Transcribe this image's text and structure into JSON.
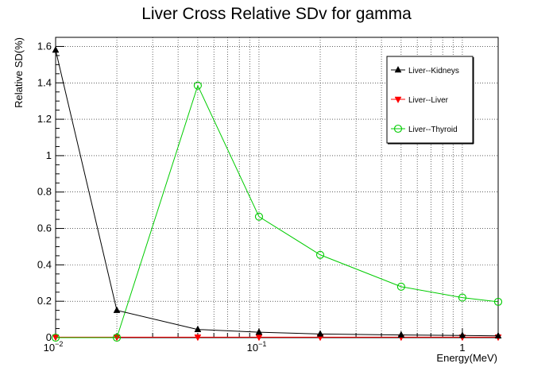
{
  "chart_data": {
    "type": "line",
    "title": "Liver Cross Relative SDv for gamma",
    "xlabel": "Energy(MeV)",
    "ylabel": "Relative SD(%)",
    "x_scale": "log",
    "xlim": [
      0.01,
      1.5
    ],
    "ylim": [
      0,
      1.65
    ],
    "grid": true,
    "legend_position": "top-right",
    "x_tick_labels": [
      {
        "value": 0.01,
        "base": "10",
        "exp": "−2"
      },
      {
        "value": 0.1,
        "base": "10",
        "exp": "−1"
      },
      {
        "value": 1,
        "base": "1",
        "exp": ""
      }
    ],
    "y_ticks": [
      "0",
      "0.2",
      "0.4",
      "0.6",
      "0.8",
      "1",
      "1.2",
      "1.4",
      "1.6"
    ],
    "x": [
      0.01,
      0.02,
      0.05,
      0.1,
      0.2,
      0.5,
      1,
      1.5
    ],
    "series": [
      {
        "name": "Liver--Kidneys",
        "color": "#000000",
        "marker": "triangle-up",
        "values": [
          1.58,
          0.15,
          0.045,
          0.03,
          0.02,
          0.015,
          0.012,
          0.01
        ]
      },
      {
        "name": "Liver--Liver",
        "color": "#ff0000",
        "marker": "triangle-down",
        "values": [
          0.003,
          0.003,
          0.003,
          0.003,
          0.003,
          0.003,
          0.003,
          0.003
        ]
      },
      {
        "name": "Liver--Thyroid",
        "color": "#00cc00",
        "marker": "open-circle",
        "values": [
          0.0,
          0.0,
          1.385,
          0.665,
          0.455,
          0.28,
          0.22,
          0.197
        ]
      }
    ]
  }
}
